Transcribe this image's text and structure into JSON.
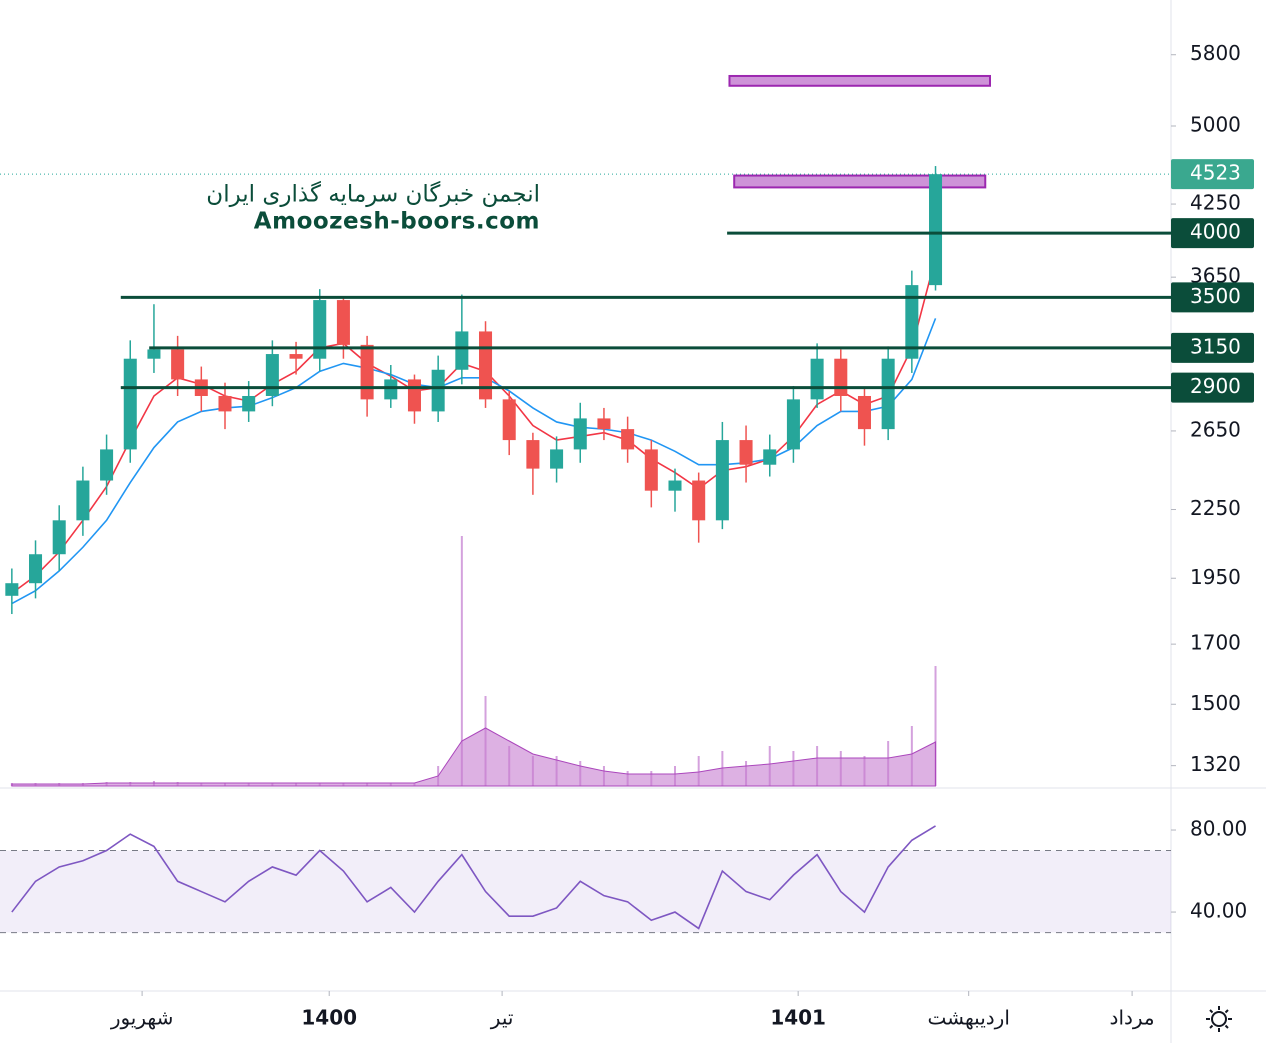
{
  "chart_data": {
    "type": "candlestick",
    "log": true,
    "xlim": [
      -0.5,
      48.9
    ],
    "ylim": [
      1260,
      6500
    ],
    "yticks": [
      1320,
      1500,
      1700,
      1950,
      2250,
      2650,
      3650,
      4250,
      5000,
      5800
    ],
    "xticks": [
      {
        "value": 5.5,
        "label": "شهریور"
      },
      {
        "value": 13.4,
        "label": "1400",
        "major": true
      },
      {
        "value": 20.7,
        "label": "تیر"
      },
      {
        "value": 33.2,
        "label": "1401",
        "major": true
      },
      {
        "value": 40.4,
        "label": "اردیبهشت"
      },
      {
        "value": 47.3,
        "label": "مرداد"
      }
    ],
    "open": [
      1880,
      1930,
      2050,
      2200,
      2390,
      2550,
      3080,
      3140,
      2950,
      2850,
      2760,
      2850,
      3110,
      3080,
      3480,
      3170,
      2830,
      2950,
      2760,
      3010,
      3260,
      2830,
      2600,
      2450,
      2550,
      2720,
      2660,
      2550,
      2340,
      2390,
      2200,
      2600,
      2470,
      2550,
      2830,
      3080,
      2850,
      2660,
      3080,
      3590
    ],
    "high": [
      1990,
      2110,
      2270,
      2460,
      2630,
      3200,
      3450,
      3230,
      3030,
      2930,
      2940,
      3200,
      3190,
      3560,
      3500,
      3230,
      3040,
      2980,
      3100,
      3520,
      3330,
      2880,
      2640,
      2620,
      2810,
      2780,
      2730,
      2600,
      2450,
      2430,
      2700,
      2680,
      2630,
      2910,
      3180,
      3140,
      2900,
      3160,
      3700,
      4600
    ],
    "low": [
      1810,
      1870,
      1980,
      2130,
      2320,
      2480,
      2990,
      2850,
      2760,
      2660,
      2700,
      2790,
      2980,
      3000,
      3080,
      2730,
      2780,
      2690,
      2700,
      2920,
      2780,
      2520,
      2320,
      2380,
      2480,
      2600,
      2480,
      2260,
      2240,
      2100,
      2160,
      2380,
      2410,
      2480,
      2780,
      2760,
      2570,
      2600,
      2990,
      3550
    ],
    "close": [
      1930,
      2050,
      2200,
      2390,
      2550,
      3080,
      3140,
      2950,
      2850,
      2760,
      2850,
      3110,
      3080,
      3480,
      3170,
      2830,
      2950,
      2760,
      3010,
      3260,
      2830,
      2600,
      2450,
      2550,
      2720,
      2660,
      2550,
      2340,
      2390,
      2200,
      2600,
      2470,
      2550,
      2830,
      3080,
      2850,
      2660,
      3080,
      3590,
      4523
    ],
    "up_color": "#26a69a",
    "down_color": "#ef5350",
    "moving_averages": [
      {
        "color": "#f23645",
        "values": [
          1890,
          1960,
          2060,
          2200,
          2360,
          2600,
          2850,
          2960,
          2920,
          2850,
          2820,
          2920,
          3000,
          3150,
          3180,
          3050,
          2970,
          2880,
          2900,
          3050,
          3000,
          2850,
          2680,
          2600,
          2620,
          2640,
          2600,
          2500,
          2430,
          2350,
          2440,
          2460,
          2500,
          2620,
          2800,
          2880,
          2800,
          2850,
          3150,
          3800
        ]
      },
      {
        "color": "#2196f3",
        "values": [
          1850,
          1900,
          1980,
          2080,
          2200,
          2380,
          2560,
          2700,
          2760,
          2780,
          2790,
          2840,
          2900,
          3000,
          3050,
          3020,
          2980,
          2920,
          2900,
          2960,
          2960,
          2880,
          2780,
          2700,
          2670,
          2660,
          2640,
          2600,
          2540,
          2470,
          2470,
          2480,
          2500,
          2560,
          2680,
          2760,
          2760,
          2790,
          2950,
          3350
        ]
      }
    ],
    "volume": {
      "color": "#c98ad4",
      "values": [
        3,
        3,
        3,
        3,
        4,
        4,
        5,
        4,
        3,
        3,
        3,
        3,
        3,
        3,
        3,
        3,
        3,
        3,
        20,
        250,
        90,
        40,
        30,
        30,
        25,
        20,
        15,
        15,
        20,
        30,
        35,
        25,
        40,
        35,
        40,
        35,
        30,
        45,
        60,
        120
      ]
    },
    "volume_average": {
      "color": "#c77dd0",
      "values": [
        2,
        2,
        2,
        2,
        3,
        3,
        3,
        3,
        3,
        3,
        3,
        3,
        3,
        3,
        3,
        3,
        3,
        3,
        10,
        45,
        58,
        45,
        32,
        26,
        20,
        15,
        12,
        12,
        12,
        14,
        18,
        20,
        22,
        25,
        28,
        28,
        28,
        28,
        32,
        44
      ]
    },
    "levels": [
      {
        "value": 4000,
        "start": 30.2
      },
      {
        "value": 3500,
        "start": 4.6
      },
      {
        "value": 3150,
        "start": 5.8
      },
      {
        "value": 2900,
        "start": 4.6
      }
    ],
    "level_color": "#0b4d3a",
    "zones": [
      {
        "low": 5437,
        "high": 5549,
        "start": 30.3,
        "end": 41.3
      },
      {
        "low": 4400,
        "high": 4510,
        "start": 30.5,
        "end": 41.1
      }
    ],
    "zone_color": "#ce93d8",
    "last_price": 4523,
    "watermark": [
      "انجمن خبرگان سرمایه گذاری ایران",
      "Amoozesh-boors.com"
    ],
    "rsi": {
      "ylim": [
        2,
        100
      ],
      "yticks": [
        {
          "value": 80,
          "label": "80.00"
        },
        {
          "value": 40,
          "label": "40.00"
        }
      ],
      "band": [
        30,
        70
      ],
      "color": "#7e57c2",
      "values": [
        40,
        55,
        62,
        65,
        70,
        78,
        72,
        55,
        50,
        45,
        55,
        62,
        58,
        70,
        60,
        45,
        52,
        40,
        55,
        68,
        50,
        38,
        38,
        42,
        55,
        48,
        45,
        36,
        40,
        32,
        60,
        50,
        46,
        58,
        68,
        50,
        40,
        62,
        75,
        82
      ]
    }
  }
}
